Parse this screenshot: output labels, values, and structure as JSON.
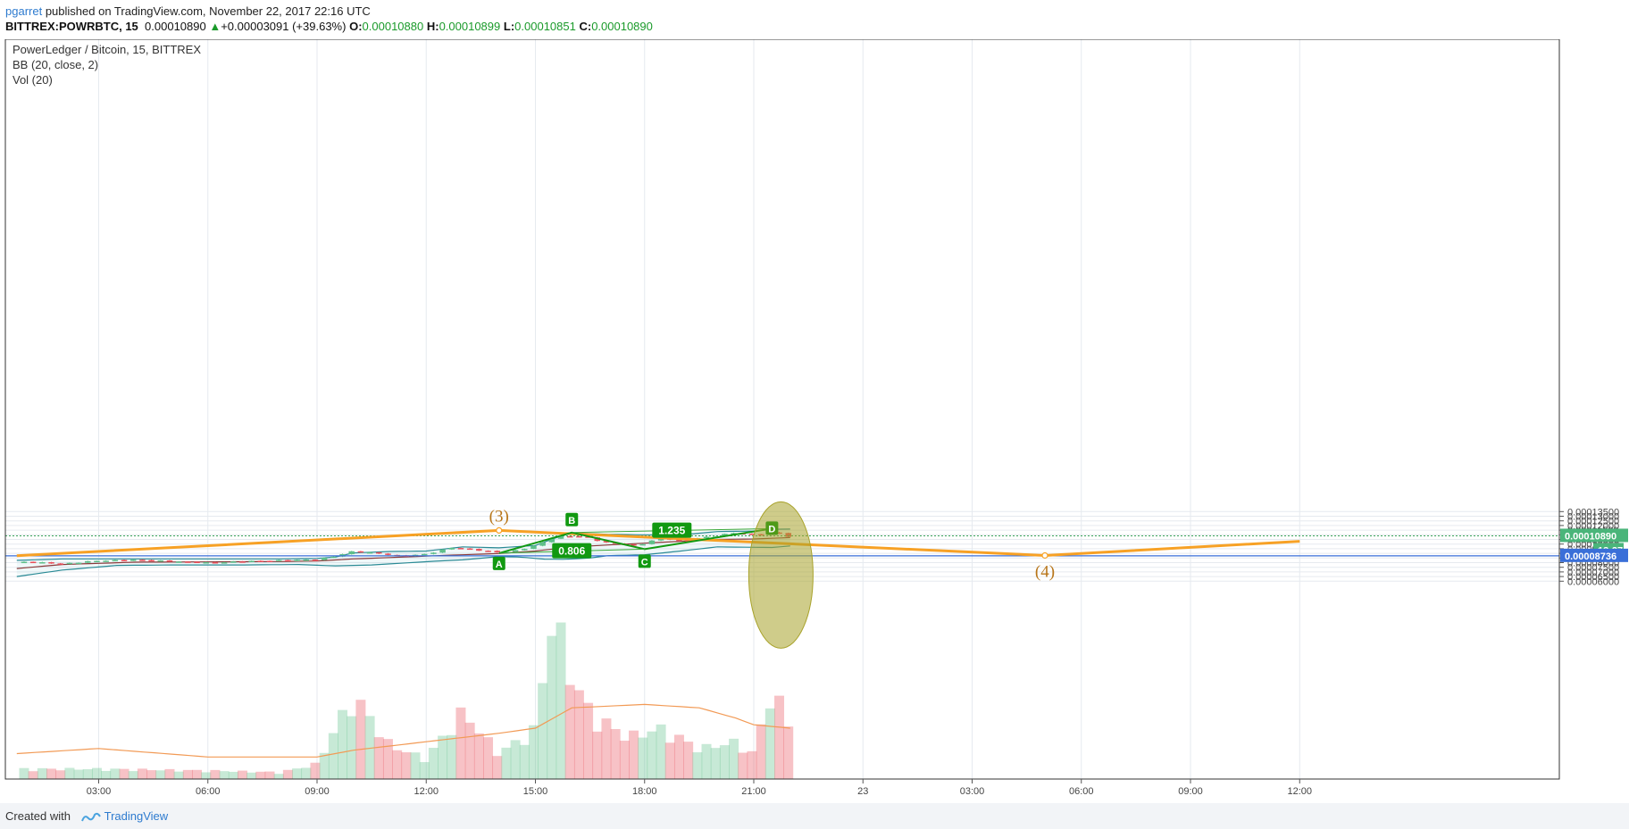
{
  "header": {
    "user": "pgarret",
    "published_text": "published on TradingView.com, November 22, 2017 22:16 UTC",
    "symbol": "BITTREX:POWRBTC, 15",
    "last": "0.00010890",
    "change": "+0.00003091 (+39.63%)",
    "ohlc": [
      {
        "label": "O:",
        "value": "0.00010880"
      },
      {
        "label": "H:",
        "value": "0.00010899"
      },
      {
        "label": "L:",
        "value": "0.00010851"
      },
      {
        "label": "C:",
        "value": "0.00010890"
      }
    ]
  },
  "legend": {
    "title": "PowerLedger / Bitcoin, 15, BITTREX",
    "bb": "BB (20, close, 2)",
    "vol": "Vol (20)"
  },
  "footer": {
    "created_with": "Created with",
    "brand": "TradingView"
  },
  "colors": {
    "up": "#5fbf8a",
    "down": "#e8505b",
    "bb_line": "#2a8a95",
    "basis": "#8a3a3a",
    "wave": "#f7a125",
    "pattern": "#119911",
    "support": "#3a6fd8",
    "ellipse": "#a8a22a",
    "vol_ma": "#f29a55"
  },
  "chart_data": {
    "type": "candlestick",
    "title": "PowerLedger / Bitcoin, 15, BITTREX",
    "x_time_labels": [
      "03:00",
      "06:00",
      "09:00",
      "12:00",
      "15:00",
      "18:00",
      "21:00",
      "23",
      "03:00",
      "06:00",
      "09:00",
      "12:00"
    ],
    "y_ticks": [
      "0.00013500",
      "0.00013000",
      "0.00012500",
      "0.00012000",
      "0.00011500",
      "0.00011000",
      "0.00010500",
      "0.00010000",
      "0.00009500",
      "0.00009000",
      "0.00008500",
      "0.00008000",
      "0.00007500",
      "0.00007000",
      "0.00006500",
      "0.00006000"
    ],
    "y_tick_values": [
      0.000135,
      0.00013,
      0.000125,
      0.00012,
      0.000115,
      0.00011,
      0.000105,
      0.0001,
      9.5e-05,
      9e-05,
      8.5e-05,
      8e-05,
      7.5e-05,
      7e-05,
      6.5e-05,
      6e-05
    ],
    "ylim": [
      5.67e-05,
      0.0001365
    ],
    "hours_range": [
      0.75,
      36.0
    ],
    "candle_interval_minutes": 15,
    "price_anchors": [
      [
        0.95,
        8.08e-05
      ],
      [
        2.0,
        7.85e-05
      ],
      [
        3.0,
        8.25e-05
      ],
      [
        4.0,
        8.3e-05
      ],
      [
        5.0,
        8.1e-05
      ],
      [
        6.0,
        8.02e-05
      ],
      [
        7.0,
        8.15e-05
      ],
      [
        8.0,
        8.2e-05
      ],
      [
        9.0,
        8.35e-05
      ],
      [
        9.5,
        8.75e-05
      ],
      [
        10.0,
        9.25e-05
      ],
      [
        10.7,
        8.95e-05
      ],
      [
        11.3,
        8.65e-05
      ],
      [
        12.0,
        8.95e-05
      ],
      [
        12.7,
        9.65e-05
      ],
      [
        13.1,
        9.5e-05
      ],
      [
        13.5,
        9.3e-05
      ],
      [
        14.0,
        9.05e-05
      ],
      [
        14.5,
        9.3e-05
      ],
      [
        15.0,
        9.85e-05
      ],
      [
        15.5,
        0.0001075
      ],
      [
        16.0,
        0.0001095
      ],
      [
        16.5,
        0.0001065
      ],
      [
        16.9,
        0.000101
      ],
      [
        17.5,
        9.95e-05
      ],
      [
        17.8,
        9.75e-05
      ],
      [
        18.0,
        0.0001015
      ],
      [
        18.5,
        0.000107
      ],
      [
        19.0,
        0.0001035
      ],
      [
        19.5,
        0.0001065
      ],
      [
        20.0,
        0.0001085
      ],
      [
        20.5,
        0.000112
      ],
      [
        21.0,
        0.0001098
      ],
      [
        21.4,
        0.0001115
      ],
      [
        21.6,
        0.000115
      ],
      [
        21.85,
        0.0001085
      ],
      [
        22.1,
        0.0001089
      ]
    ],
    "bollinger_upper": [
      [
        0.75,
        8.25e-05
      ],
      [
        2.0,
        8.4e-05
      ],
      [
        4.0,
        8.4e-05
      ],
      [
        6.0,
        8.4e-05
      ],
      [
        8.0,
        8.4e-05
      ],
      [
        9.0,
        8.45e-05
      ],
      [
        9.5,
        8.6e-05
      ],
      [
        10.0,
        9.05e-05
      ],
      [
        11.0,
        9.2e-05
      ],
      [
        12.0,
        9.25e-05
      ],
      [
        13.0,
        9.7e-05
      ],
      [
        14.0,
        9.6e-05
      ],
      [
        15.0,
        9.85e-05
      ],
      [
        15.5,
        0.000106
      ],
      [
        16.0,
        0.000112
      ],
      [
        17.0,
        0.0001105
      ],
      [
        18.0,
        0.00011
      ],
      [
        19.0,
        0.00011
      ],
      [
        20.0,
        0.0001135
      ],
      [
        21.0,
        0.000114
      ],
      [
        21.5,
        0.000116
      ],
      [
        22.0,
        0.0001162
      ]
    ],
    "bollinger_basis": [
      [
        0.75,
        7.37e-05
      ],
      [
        2.0,
        7.8e-05
      ],
      [
        4.0,
        8.05e-05
      ],
      [
        6.0,
        8.08e-05
      ],
      [
        8.0,
        8.12e-05
      ],
      [
        9.0,
        8.18e-05
      ],
      [
        10.0,
        8.4e-05
      ],
      [
        11.0,
        8.55e-05
      ],
      [
        12.0,
        8.7e-05
      ],
      [
        13.0,
        8.85e-05
      ],
      [
        14.0,
        8.98e-05
      ],
      [
        15.0,
        9.25e-05
      ],
      [
        16.0,
        9.7e-05
      ],
      [
        17.0,
        9.9e-05
      ],
      [
        18.0,
        0.000101
      ],
      [
        19.0,
        0.000103
      ],
      [
        20.0,
        0.000105
      ],
      [
        21.0,
        0.0001055
      ],
      [
        22.0,
        0.000107
      ]
    ],
    "bollinger_lower": [
      [
        0.75,
        6.5e-05
      ],
      [
        2.0,
        7.2e-05
      ],
      [
        3.5,
        7.7e-05
      ],
      [
        5.0,
        7.75e-05
      ],
      [
        7.0,
        7.75e-05
      ],
      [
        8.5,
        7.8e-05
      ],
      [
        9.5,
        7.65e-05
      ],
      [
        10.5,
        7.75e-05
      ],
      [
        12.0,
        8.1e-05
      ],
      [
        13.0,
        8.3e-05
      ],
      [
        14.0,
        8.65e-05
      ],
      [
        14.6,
        8.6e-05
      ],
      [
        15.2,
        8.38e-05
      ],
      [
        15.8,
        8.35e-05
      ],
      [
        16.5,
        8.5e-05
      ],
      [
        17.0,
        8.75e-05
      ],
      [
        18.0,
        8.85e-05
      ],
      [
        19.0,
        9.25e-05
      ],
      [
        20.0,
        9.7e-05
      ],
      [
        21.0,
        9.65e-05
      ],
      [
        21.5,
        9.63e-05
      ],
      [
        22.0,
        9.8e-05
      ]
    ],
    "volume_anchors": [
      [
        0.95,
        0.06
      ],
      [
        3.0,
        0.06
      ],
      [
        6.0,
        0.05
      ],
      [
        8.0,
        0.04
      ],
      [
        9.0,
        0.09
      ],
      [
        10.0,
        0.5
      ],
      [
        11.0,
        0.2
      ],
      [
        12.0,
        0.12
      ],
      [
        13.0,
        0.4
      ],
      [
        14.0,
        0.15
      ],
      [
        15.0,
        0.3
      ],
      [
        15.5,
        1.0
      ],
      [
        16.0,
        0.6
      ],
      [
        16.5,
        0.4
      ],
      [
        17.5,
        0.25
      ],
      [
        18.5,
        0.3
      ],
      [
        19.5,
        0.18
      ],
      [
        20.5,
        0.22
      ],
      [
        21.0,
        0.15
      ],
      [
        21.5,
        0.55
      ],
      [
        22.0,
        0.3
      ]
    ],
    "volume_ma": [
      [
        0.75,
        0.15
      ],
      [
        3.0,
        0.18
      ],
      [
        6.0,
        0.13
      ],
      [
        9.0,
        0.13
      ],
      [
        10.0,
        0.17
      ],
      [
        12.0,
        0.22
      ],
      [
        14.0,
        0.27
      ],
      [
        15.0,
        0.3
      ],
      [
        15.5,
        0.36
      ],
      [
        16.0,
        0.42
      ],
      [
        18.0,
        0.44
      ],
      [
        19.5,
        0.42
      ],
      [
        20.5,
        0.36
      ],
      [
        21.0,
        0.32
      ],
      [
        22.0,
        0.3
      ]
    ],
    "wave_labels": [
      "(3)",
      "(4)"
    ],
    "wave_path": [
      [
        0.75,
        8.75e-05
      ],
      [
        14.0,
        0.0001147
      ],
      [
        29.0,
        8.77e-05
      ],
      [
        36.0,
        0.000103
      ]
    ],
    "harmonic_points": [
      {
        "label": "A",
        "x": 14.0,
        "y": 9.02e-05
      },
      {
        "label": "B",
        "x": 16.0,
        "y": 0.0001124
      },
      {
        "label": "C",
        "x": 18.0,
        "y": 9.45e-05
      },
      {
        "label": "D",
        "x": 21.5,
        "y": 0.0001167
      }
    ],
    "ratios": [
      {
        "label": "0.806"
      },
      {
        "label": "1.235"
      }
    ],
    "current_price": {
      "value": 0.0001089,
      "label": "0.00010890",
      "countdown": "13:27"
    },
    "support_level": {
      "value": 8.736e-05,
      "label": "0.00008736"
    }
  }
}
